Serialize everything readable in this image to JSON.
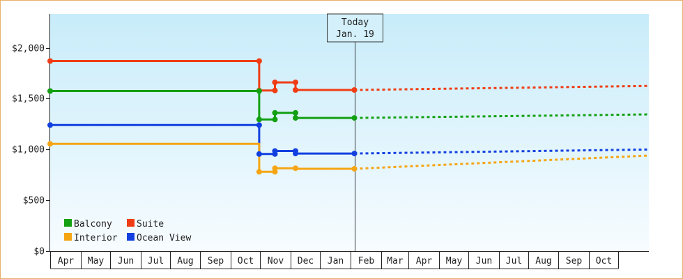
{
  "chart_data": {
    "type": "line",
    "title": "",
    "xlabel": "",
    "ylabel": "",
    "ylim": [
      0,
      2333
    ],
    "y_ticks": [
      {
        "value": 0,
        "label": "$0"
      },
      {
        "value": 500,
        "label": "$500"
      },
      {
        "value": 1000,
        "label": "$1,000"
      },
      {
        "value": 1500,
        "label": "$1,500"
      },
      {
        "value": 2000,
        "label": "$2,000"
      }
    ],
    "x_range": [
      "2020-03-15",
      "2021-11-15"
    ],
    "months": [
      {
        "label": "Apr",
        "start": "2020-03-15",
        "end": "2020-04-15"
      },
      {
        "label": "May",
        "start": "2020-04-15",
        "end": "2020-05-15"
      },
      {
        "label": "Jun",
        "start": "2020-05-15",
        "end": "2020-06-15"
      },
      {
        "label": "Jul",
        "start": "2020-06-15",
        "end": "2020-07-15"
      },
      {
        "label": "Aug",
        "start": "2020-07-15",
        "end": "2020-08-15"
      },
      {
        "label": "Sep",
        "start": "2020-08-15",
        "end": "2020-09-15"
      },
      {
        "label": "Oct",
        "start": "2020-09-15",
        "end": "2020-10-15"
      },
      {
        "label": "Nov",
        "start": "2020-10-15",
        "end": "2020-11-15"
      },
      {
        "label": "Dec",
        "start": "2020-11-15",
        "end": "2020-12-15"
      },
      {
        "label": "Jan",
        "start": "2020-12-15",
        "end": "2021-01-15"
      },
      {
        "label": "Feb",
        "start": "2021-01-15",
        "end": "2021-02-15"
      },
      {
        "label": "Mar",
        "start": "2021-02-15",
        "end": "2021-03-15"
      },
      {
        "label": "Apr",
        "start": "2021-03-15",
        "end": "2021-04-15"
      },
      {
        "label": "May",
        "start": "2021-04-15",
        "end": "2021-05-15"
      },
      {
        "label": "Jun",
        "start": "2021-05-15",
        "end": "2021-06-15"
      },
      {
        "label": "Jul",
        "start": "2021-06-15",
        "end": "2021-07-15"
      },
      {
        "label": "Aug",
        "start": "2021-07-15",
        "end": "2021-08-15"
      },
      {
        "label": "Sep",
        "start": "2021-08-15",
        "end": "2021-09-15"
      },
      {
        "label": "Oct",
        "start": "2021-09-15",
        "end": "2021-10-15"
      }
    ],
    "today": {
      "date": "2021-01-19",
      "line1": "Today",
      "line2": "Jan. 19"
    },
    "series": [
      {
        "name": "Suite",
        "color": "#f03c14",
        "history": [
          [
            "2020-03-15",
            1870
          ],
          [
            "2020-10-14",
            1870
          ],
          [
            "2020-10-14",
            1580
          ],
          [
            "2020-10-30",
            1580
          ],
          [
            "2020-10-30",
            1660
          ],
          [
            "2020-11-20",
            1660
          ],
          [
            "2020-11-20",
            1585
          ],
          [
            "2021-01-19",
            1585
          ]
        ],
        "points": [
          [
            "2020-03-15",
            1870
          ],
          [
            "2020-10-14",
            1870
          ],
          [
            "2020-10-14",
            1580
          ],
          [
            "2020-10-30",
            1580
          ],
          [
            "2020-10-30",
            1660
          ],
          [
            "2020-11-20",
            1660
          ],
          [
            "2020-11-20",
            1585
          ],
          [
            "2021-01-19",
            1585
          ]
        ],
        "forecast": [
          [
            "2021-01-19",
            1585
          ],
          [
            "2021-11-15",
            1625
          ]
        ]
      },
      {
        "name": "Balcony",
        "color": "#13a013",
        "history": [
          [
            "2020-03-15",
            1575
          ],
          [
            "2020-10-14",
            1575
          ],
          [
            "2020-10-14",
            1295
          ],
          [
            "2020-10-30",
            1295
          ],
          [
            "2020-10-30",
            1360
          ],
          [
            "2020-11-20",
            1360
          ],
          [
            "2020-11-20",
            1310
          ],
          [
            "2021-01-19",
            1310
          ]
        ],
        "points": [
          [
            "2020-03-15",
            1575
          ],
          [
            "2020-10-14",
            1575
          ],
          [
            "2020-10-14",
            1295
          ],
          [
            "2020-10-30",
            1295
          ],
          [
            "2020-10-30",
            1360
          ],
          [
            "2020-11-20",
            1360
          ],
          [
            "2020-11-20",
            1310
          ],
          [
            "2021-01-19",
            1310
          ]
        ],
        "forecast": [
          [
            "2021-01-19",
            1310
          ],
          [
            "2021-11-15",
            1345
          ]
        ]
      },
      {
        "name": "Ocean View",
        "color": "#1240e0",
        "history": [
          [
            "2020-03-15",
            1240
          ],
          [
            "2020-10-14",
            1240
          ],
          [
            "2020-10-14",
            955
          ],
          [
            "2020-10-30",
            955
          ],
          [
            "2020-10-30",
            985
          ],
          [
            "2020-11-20",
            985
          ],
          [
            "2020-11-20",
            960
          ],
          [
            "2021-01-19",
            960
          ]
        ],
        "points": [
          [
            "2020-03-15",
            1240
          ],
          [
            "2020-10-14",
            1240
          ],
          [
            "2020-10-14",
            955
          ],
          [
            "2020-10-30",
            955
          ],
          [
            "2020-10-30",
            985
          ],
          [
            "2020-11-20",
            985
          ],
          [
            "2020-11-20",
            960
          ],
          [
            "2021-01-19",
            960
          ]
        ],
        "forecast": [
          [
            "2021-01-19",
            960
          ],
          [
            "2021-11-15",
            1000
          ]
        ]
      },
      {
        "name": "Interior",
        "color": "#f5a514",
        "history": [
          [
            "2020-03-15",
            1055
          ],
          [
            "2020-10-14",
            1055
          ],
          [
            "2020-10-14",
            780
          ],
          [
            "2020-10-30",
            780
          ],
          [
            "2020-10-30",
            815
          ],
          [
            "2020-11-20",
            815
          ],
          [
            "2020-11-20",
            810
          ],
          [
            "2021-01-19",
            810
          ]
        ],
        "points": [
          [
            "2020-03-15",
            1055
          ],
          [
            "2020-10-14",
            780
          ],
          [
            "2020-10-30",
            780
          ],
          [
            "2020-10-30",
            815
          ],
          [
            "2020-11-20",
            815
          ],
          [
            "2021-01-19",
            810
          ]
        ],
        "forecast": [
          [
            "2021-01-19",
            810
          ],
          [
            "2021-11-15",
            940
          ]
        ]
      }
    ],
    "legend": [
      {
        "name": "Balcony",
        "color": "#13a013"
      },
      {
        "name": "Suite",
        "color": "#f03c14"
      },
      {
        "name": "Interior",
        "color": "#f5a514"
      },
      {
        "name": "Ocean View",
        "color": "#1240e0"
      }
    ],
    "legend_position": "bottom-left",
    "grid": false
  }
}
